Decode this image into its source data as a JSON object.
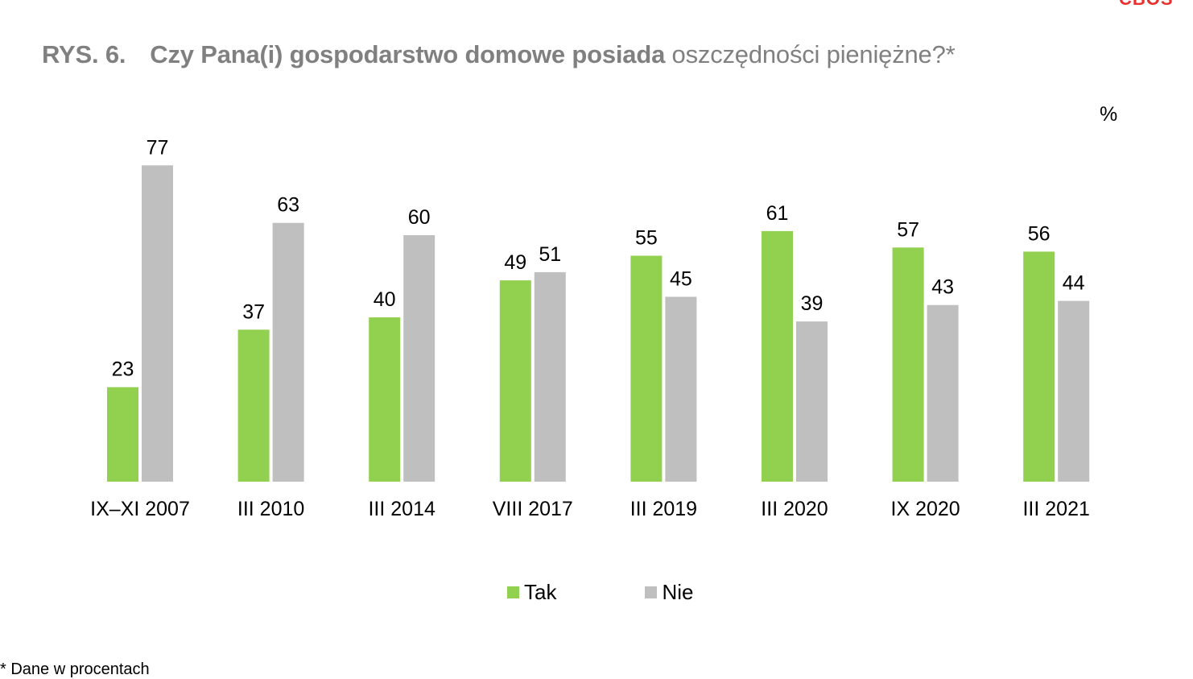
{
  "brand": "CBOS",
  "title": {
    "number": "RYS. 6.",
    "text_bold": "Czy Pana(i) gospodarstwo domowe posiada",
    "text_light": "oszczędności pieniężne?*"
  },
  "unit_label": "%",
  "colors": {
    "tak": "#92d050",
    "nie": "#bfbfbf"
  },
  "chart_data": {
    "type": "bar",
    "title": "Czy Pana(i) gospodarstwo domowe posiada oszczędności pieniężne?*",
    "ylabel": "%",
    "ylim": [
      0,
      77
    ],
    "grid": false,
    "legend_position": "bottom",
    "categories": [
      "IX–XI 2007",
      "III 2010",
      "III 2014",
      "VIII 2017",
      "III 2019",
      "III 2020",
      "IX 2020",
      "III 2021"
    ],
    "series": [
      {
        "name": "Tak",
        "color": "#92d050",
        "values": [
          23,
          37,
          40,
          49,
          55,
          61,
          57,
          56
        ]
      },
      {
        "name": "Nie",
        "color": "#bfbfbf",
        "values": [
          77,
          63,
          60,
          51,
          45,
          39,
          43,
          44
        ]
      }
    ]
  },
  "footnote": "* Dane w procentach"
}
